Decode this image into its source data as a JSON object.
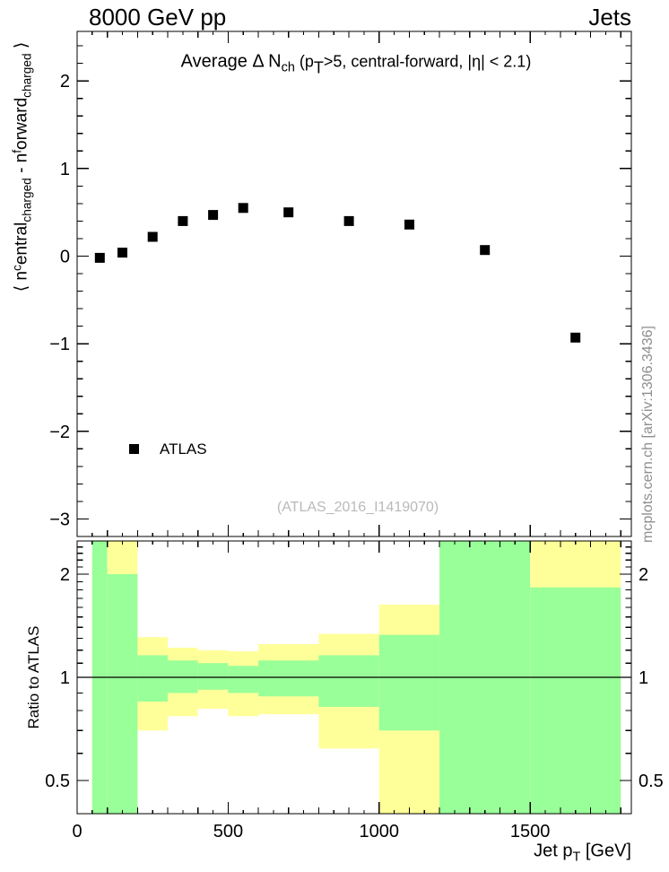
{
  "header": {
    "left": "8000 GeV pp",
    "right": "Jets"
  },
  "colors": {
    "background": "#ffffff",
    "frame": "#000000",
    "marker": "#000000",
    "band_yellow": "#ffff99",
    "band_green": "#99ff99",
    "watermark_gray": "#b9b9b9",
    "side_note_gray": "#8e8e8e"
  },
  "main_panel": {
    "title_segments": [
      {
        "t": "Average  Δ N"
      },
      {
        "t": "ch",
        "sub": true
      },
      {
        "t": " (p",
        "small": true
      },
      {
        "t": "T",
        "sub": true,
        "small": true
      },
      {
        "t": ">5, central-forward, |η| < 2.1)",
        "small": true
      }
    ],
    "ylabel_segments": [
      {
        "t": "⟨ n"
      },
      {
        "t": "c",
        "sup": true
      },
      {
        "t": "entral"
      },
      {
        "t": "charged",
        "sub": true
      },
      {
        "t": " - n"
      },
      {
        "t": "f",
        "sup": true
      },
      {
        "t": "orward"
      },
      {
        "t": "charged",
        "sub": true
      },
      {
        "t": " ⟩"
      }
    ],
    "ytick_labels": [
      "2",
      "1",
      "0",
      "−1",
      "−2",
      "−3"
    ],
    "ytick_values": [
      2,
      1,
      0,
      -1,
      -2,
      -3
    ],
    "legend": {
      "marker": "black-filled-square",
      "label": "ATLAS"
    },
    "watermark": "(ATLAS_2016_I1419070)"
  },
  "ratio_panel": {
    "ylabel": "Ratio to ATLAS",
    "ytick_labels": [
      "2",
      "1",
      "0.5"
    ],
    "ytick_values": [
      2,
      1,
      0.5
    ]
  },
  "xaxis": {
    "tick_labels": [
      "0",
      "500",
      "1000",
      "1500"
    ],
    "tick_values": [
      0,
      500,
      1000,
      1500
    ],
    "title_segments": [
      {
        "t": "Jet p"
      },
      {
        "t": "T",
        "sub": true
      },
      {
        "t": " [GeV]"
      }
    ]
  },
  "side_note": "mcplots.cern.ch [arXiv:1306.3436]",
  "chart_data": {
    "type": "scatter",
    "title": "Average Δ N_ch (p_T>5, central-forward, |η| < 2.1)",
    "xlabel": "Jet p_T [GeV]",
    "ylabel": "⟨ n^central_charged - n^forward_charged ⟩",
    "xlim": [
      0,
      1835
    ],
    "ylim_main": [
      -3.2,
      2.565
    ],
    "grid": false,
    "legend_position": "lower-left-inside",
    "series": [
      {
        "name": "ATLAS",
        "marker": "filled-square",
        "color": "#000000",
        "x": [
          75,
          150,
          250,
          350,
          450,
          550,
          700,
          900,
          1100,
          1350,
          1650
        ],
        "y": [
          -0.02,
          0.04,
          0.22,
          0.4,
          0.47,
          0.55,
          0.5,
          0.4,
          0.36,
          0.07,
          -0.93
        ]
      }
    ],
    "ratio": {
      "ylabel": "Ratio to ATLAS",
      "yscale": "log",
      "ylim": [
        0.4,
        2.5
      ],
      "reference_line": 1.0,
      "band_meaning": {
        "yellow": "outer uncertainty band",
        "green": "inner uncertainty band"
      },
      "bins": [
        {
          "lo": 50,
          "hi": 100,
          "yellow": [
            0.4,
            2.5
          ],
          "green": [
            0.4,
            2.5
          ]
        },
        {
          "lo": 100,
          "hi": 200,
          "yellow": [
            0.4,
            2.5
          ],
          "green": [
            0.4,
            2.0
          ]
        },
        {
          "lo": 200,
          "hi": 300,
          "yellow": [
            0.7,
            1.31
          ],
          "green": [
            0.85,
            1.16
          ]
        },
        {
          "lo": 300,
          "hi": 400,
          "yellow": [
            0.77,
            1.22
          ],
          "green": [
            0.9,
            1.12
          ]
        },
        {
          "lo": 400,
          "hi": 500,
          "yellow": [
            0.81,
            1.2
          ],
          "green": [
            0.92,
            1.1
          ]
        },
        {
          "lo": 500,
          "hi": 600,
          "yellow": [
            0.77,
            1.19
          ],
          "green": [
            0.9,
            1.08
          ]
        },
        {
          "lo": 600,
          "hi": 800,
          "yellow": [
            0.78,
            1.25
          ],
          "green": [
            0.88,
            1.12
          ]
        },
        {
          "lo": 800,
          "hi": 1000,
          "yellow": [
            0.62,
            1.34
          ],
          "green": [
            0.82,
            1.16
          ]
        },
        {
          "lo": 1000,
          "hi": 1200,
          "yellow": [
            0.4,
            1.63
          ],
          "green": [
            0.7,
            1.33
          ]
        },
        {
          "lo": 1200,
          "hi": 1500,
          "yellow": [
            0.4,
            2.5
          ],
          "green": [
            0.4,
            2.5
          ]
        },
        {
          "lo": 1500,
          "hi": 1800,
          "yellow": [
            0.4,
            2.5
          ],
          "green": [
            0.4,
            1.83
          ]
        }
      ]
    },
    "x_ticks": {
      "major_step": 500,
      "minor_step": 100,
      "micro_step": 50
    },
    "y_ticks_main": {
      "major_step": 1.0,
      "minor_step": 0.2
    },
    "ratio_ticks": {
      "labeled": [
        0.5,
        1,
        2
      ],
      "minor_step_per_decade": 0.1
    }
  }
}
